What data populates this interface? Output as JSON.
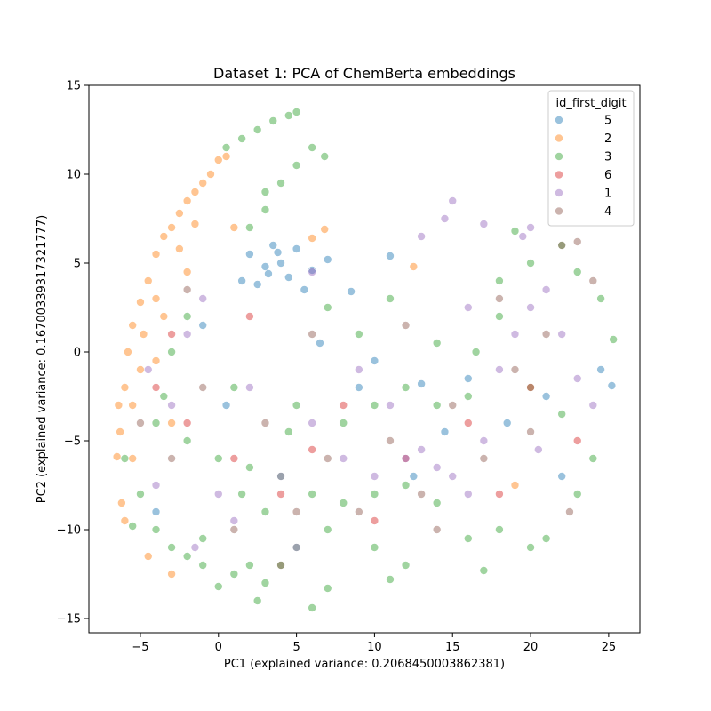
{
  "chart_data": {
    "type": "scatter",
    "title": "Dataset 1: PCA of ChemBerta embeddings",
    "xlabel": "PC1 (explained variance: 0.2068450003862381)",
    "ylabel": "PC2 (explained variance: 0.16700339317321777)",
    "xlim": [
      -8.3,
      27.0
    ],
    "ylim": [
      -15.8,
      15.0
    ],
    "xticks": [
      -5,
      0,
      5,
      10,
      15,
      20,
      25
    ],
    "yticks": [
      -15,
      -10,
      -5,
      0,
      5,
      10,
      15
    ],
    "xtick_labels": [
      "−5",
      "0",
      "5",
      "10",
      "15",
      "20",
      "25"
    ],
    "ytick_labels": [
      "−15",
      "−10",
      "−5",
      "0",
      "5",
      "10",
      "15"
    ],
    "legend": {
      "title": "id_first_digit",
      "placement": "top-right",
      "entries": [
        "5",
        "2",
        "3",
        "6",
        "1",
        "4"
      ]
    },
    "grid": false,
    "marker_alpha": 0.45,
    "series": [
      {
        "name": "5",
        "color": "#1f77b4",
        "points": [
          [
            2.0,
            5.5
          ],
          [
            3.0,
            4.8
          ],
          [
            4.0,
            5.0
          ],
          [
            3.5,
            6.0
          ],
          [
            1.5,
            4.0
          ],
          [
            5.0,
            5.8
          ],
          [
            4.5,
            4.2
          ],
          [
            6.0,
            4.6
          ],
          [
            2.5,
            3.8
          ],
          [
            3.2,
            4.4
          ],
          [
            7.0,
            5.2
          ],
          [
            8.5,
            3.4
          ],
          [
            -1.0,
            1.5
          ],
          [
            0.5,
            -3.0
          ],
          [
            11.0,
            5.4
          ],
          [
            13.0,
            -1.8
          ],
          [
            14.5,
            -4.5
          ],
          [
            16.0,
            -1.5
          ],
          [
            18.5,
            -4.0
          ],
          [
            21.0,
            -2.5
          ],
          [
            24.5,
            -1.0
          ],
          [
            25.2,
            -1.9
          ],
          [
            22.0,
            -7.0
          ],
          [
            10.0,
            -0.5
          ],
          [
            -4.0,
            -9.0
          ],
          [
            6.5,
            0.5
          ],
          [
            9.0,
            -2.0
          ],
          [
            12.5,
            -7.0
          ],
          [
            5.5,
            3.5
          ],
          [
            3.8,
            5.6
          ]
        ]
      },
      {
        "name": "2",
        "color": "#ff7f0e",
        "points": [
          [
            -6.5,
            -5.9
          ],
          [
            -6.3,
            -4.5
          ],
          [
            -6.0,
            -2.0
          ],
          [
            -5.8,
            0.0
          ],
          [
            -5.5,
            1.5
          ],
          [
            -5.0,
            2.8
          ],
          [
            -4.5,
            4.0
          ],
          [
            -4.0,
            5.5
          ],
          [
            -3.5,
            6.5
          ],
          [
            -3.0,
            7.0
          ],
          [
            -2.5,
            7.8
          ],
          [
            -2.0,
            8.5
          ],
          [
            -1.5,
            9.0
          ],
          [
            -1.0,
            9.5
          ],
          [
            -0.5,
            10.0
          ],
          [
            0.0,
            10.8
          ],
          [
            0.5,
            11.0
          ],
          [
            -5.5,
            -3.0
          ],
          [
            -5.0,
            -1.0
          ],
          [
            -4.0,
            -0.5
          ],
          [
            -6.2,
            -8.5
          ],
          [
            -6.0,
            -9.5
          ],
          [
            -4.5,
            -11.5
          ],
          [
            -3.0,
            -12.5
          ],
          [
            -4.0,
            3.0
          ],
          [
            -3.5,
            2.0
          ],
          [
            -2.0,
            4.5
          ],
          [
            1.0,
            7.0
          ],
          [
            6.0,
            6.4
          ],
          [
            6.8,
            6.9
          ],
          [
            12.5,
            4.8
          ],
          [
            19.0,
            -7.5
          ],
          [
            -5.5,
            -6.0
          ],
          [
            -3.0,
            -4.0
          ],
          [
            -6.4,
            -3.0
          ],
          [
            -2.5,
            5.8
          ],
          [
            -1.5,
            7.2
          ],
          [
            -4.8,
            1.0
          ]
        ]
      },
      {
        "name": "3",
        "color": "#2ca02c",
        "points": [
          [
            -6.0,
            -6.0
          ],
          [
            -5.0,
            -8.0
          ],
          [
            -4.0,
            -10.0
          ],
          [
            -3.0,
            -11.0
          ],
          [
            -2.0,
            -11.5
          ],
          [
            -1.0,
            -12.0
          ],
          [
            0.0,
            -13.2
          ],
          [
            1.0,
            -12.5
          ],
          [
            2.0,
            -12.0
          ],
          [
            3.0,
            -13.0
          ],
          [
            4.0,
            -12.0
          ],
          [
            5.0,
            -11.0
          ],
          [
            6.0,
            -14.4
          ],
          [
            7.0,
            -13.3
          ],
          [
            -4.0,
            -4.0
          ],
          [
            -2.0,
            -5.0
          ],
          [
            0.0,
            -6.0
          ],
          [
            2.0,
            -6.5
          ],
          [
            4.0,
            -7.0
          ],
          [
            6.0,
            -8.0
          ],
          [
            8.0,
            -8.5
          ],
          [
            10.0,
            -8.0
          ],
          [
            12.0,
            -7.5
          ],
          [
            14.0,
            -8.5
          ],
          [
            16.0,
            -10.5
          ],
          [
            18.0,
            -10.0
          ],
          [
            20.0,
            -11.0
          ],
          [
            21.0,
            -10.5
          ],
          [
            0.5,
            11.5
          ],
          [
            1.5,
            12.0
          ],
          [
            2.5,
            12.5
          ],
          [
            3.5,
            13.0
          ],
          [
            4.5,
            13.3
          ],
          [
            5.0,
            13.5
          ],
          [
            3.0,
            9.0
          ],
          [
            4.0,
            9.5
          ],
          [
            5.0,
            10.5
          ],
          [
            6.0,
            11.5
          ],
          [
            6.8,
            11.0
          ],
          [
            3.0,
            8.0
          ],
          [
            2.0,
            7.0
          ],
          [
            -2.0,
            2.0
          ],
          [
            -3.0,
            0.0
          ],
          [
            1.0,
            -2.0
          ],
          [
            5.0,
            -3.0
          ],
          [
            8.0,
            -4.0
          ],
          [
            10.0,
            -3.0
          ],
          [
            12.0,
            -2.0
          ],
          [
            14.0,
            -3.0
          ],
          [
            16.0,
            -2.5
          ],
          [
            18.0,
            4.0
          ],
          [
            20.0,
            5.0
          ],
          [
            22.0,
            6.0
          ],
          [
            23.0,
            4.5
          ],
          [
            24.5,
            3.0
          ],
          [
            25.3,
            0.7
          ],
          [
            22.0,
            -3.5
          ],
          [
            20.0,
            -2.0
          ],
          [
            18.0,
            2.0
          ],
          [
            16.5,
            0.0
          ],
          [
            14.0,
            0.5
          ],
          [
            11.0,
            3.0
          ],
          [
            9.0,
            1.0
          ],
          [
            7.0,
            2.5
          ],
          [
            3.0,
            -9.0
          ],
          [
            7.0,
            -10.0
          ],
          [
            10.0,
            -11.0
          ],
          [
            12.0,
            -12.0
          ],
          [
            17.0,
            -12.3
          ],
          [
            23.0,
            -8.0
          ],
          [
            24.0,
            -6.0
          ],
          [
            19.0,
            6.8
          ],
          [
            -5.5,
            -9.8
          ],
          [
            -1.0,
            -10.5
          ],
          [
            1.5,
            -8.0
          ],
          [
            4.5,
            -4.5
          ],
          [
            -3.5,
            -2.5
          ],
          [
            11.0,
            -12.8
          ],
          [
            2.5,
            -14.0
          ]
        ]
      },
      {
        "name": "6",
        "color": "#d62728",
        "points": [
          [
            -4.0,
            -2.0
          ],
          [
            -2.0,
            -4.0
          ],
          [
            1.0,
            -6.0
          ],
          [
            4.0,
            -8.0
          ],
          [
            8.0,
            -3.0
          ],
          [
            12.0,
            -6.0
          ],
          [
            16.0,
            -4.0
          ],
          [
            20.0,
            -2.0
          ],
          [
            23.0,
            -5.0
          ],
          [
            -3.0,
            1.0
          ],
          [
            2.0,
            2.0
          ],
          [
            6.0,
            -5.5
          ],
          [
            10.0,
            -9.5
          ],
          [
            18.0,
            -8.0
          ]
        ]
      },
      {
        "name": "1",
        "color": "#9467bd",
        "points": [
          [
            -4.5,
            -1.0
          ],
          [
            -3.0,
            -3.0
          ],
          [
            -2.0,
            1.0
          ],
          [
            -1.0,
            3.0
          ],
          [
            0.0,
            -8.0
          ],
          [
            2.0,
            -2.0
          ],
          [
            4.0,
            -7.0
          ],
          [
            6.0,
            -4.0
          ],
          [
            8.0,
            -6.0
          ],
          [
            10.0,
            -7.0
          ],
          [
            12.0,
            -6.0
          ],
          [
            13.0,
            -5.5
          ],
          [
            14.0,
            -6.5
          ],
          [
            15.0,
            -7.0
          ],
          [
            16.0,
            -8.0
          ],
          [
            17.0,
            -5.0
          ],
          [
            18.0,
            -1.0
          ],
          [
            19.0,
            1.0
          ],
          [
            20.0,
            2.5
          ],
          [
            21.0,
            3.5
          ],
          [
            22.0,
            1.0
          ],
          [
            23.0,
            -1.5
          ],
          [
            24.0,
            -3.0
          ],
          [
            14.5,
            7.5
          ],
          [
            15.0,
            8.5
          ],
          [
            17.0,
            7.2
          ],
          [
            13.0,
            6.5
          ],
          [
            16.0,
            2.5
          ],
          [
            19.5,
            6.5
          ],
          [
            20.0,
            7.0
          ],
          [
            9.0,
            -1.0
          ],
          [
            6.0,
            4.5
          ],
          [
            -4.0,
            -7.5
          ],
          [
            1.0,
            -9.5
          ],
          [
            11.0,
            -3.0
          ],
          [
            20.5,
            -5.5
          ],
          [
            5.0,
            -11.0
          ],
          [
            -1.5,
            -11.0
          ]
        ]
      },
      {
        "name": "4",
        "color": "#8c564b",
        "points": [
          [
            -3.0,
            -6.0
          ],
          [
            -1.0,
            -2.0
          ],
          [
            1.0,
            -10.0
          ],
          [
            3.0,
            -4.0
          ],
          [
            5.0,
            -9.0
          ],
          [
            7.0,
            -6.0
          ],
          [
            9.0,
            -9.0
          ],
          [
            11.0,
            -5.0
          ],
          [
            13.0,
            -8.0
          ],
          [
            15.0,
            -3.0
          ],
          [
            17.0,
            -6.0
          ],
          [
            19.0,
            -1.0
          ],
          [
            21.0,
            1.0
          ],
          [
            22.0,
            6.0
          ],
          [
            23.0,
            6.2
          ],
          [
            24.0,
            4.0
          ],
          [
            20.0,
            -4.5
          ],
          [
            18.0,
            3.0
          ],
          [
            -5.0,
            -4.0
          ],
          [
            -2.0,
            3.5
          ],
          [
            6.0,
            1.0
          ],
          [
            14.0,
            -10.0
          ],
          [
            4.0,
            -12.0
          ],
          [
            22.5,
            -9.0
          ],
          [
            12.0,
            1.5
          ]
        ]
      }
    ]
  }
}
